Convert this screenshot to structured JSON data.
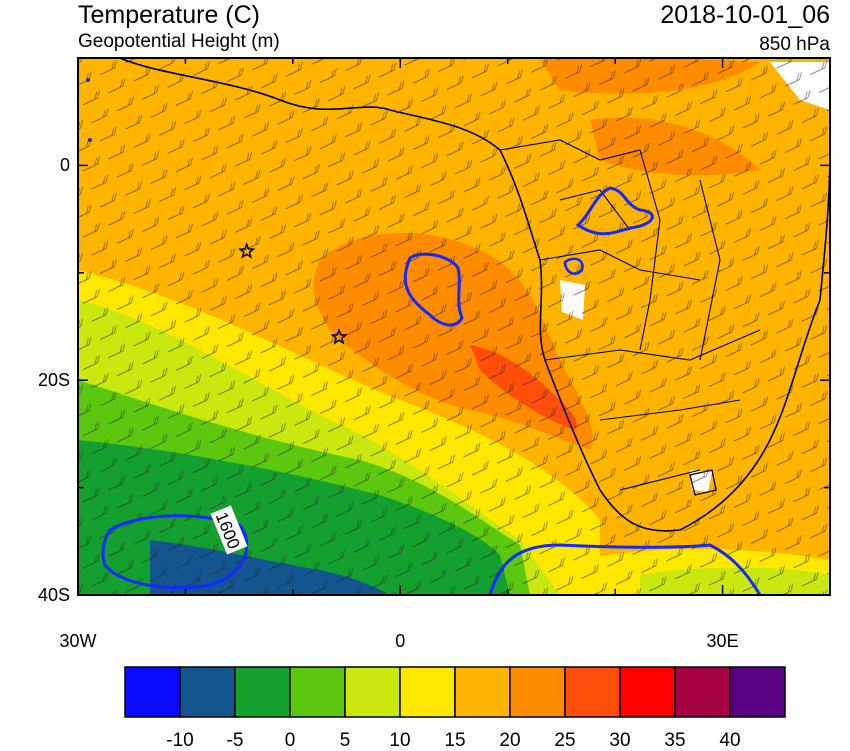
{
  "header": {
    "title_left": "Temperature (C)",
    "subtitle_left": "Geopotential Height (m)",
    "title_right": "2018-10-01_06",
    "subtitle_right": "850 hPa"
  },
  "map": {
    "y_ticks": [
      {
        "lat": 0,
        "label": "0"
      },
      {
        "lat": -20,
        "label": "20S"
      },
      {
        "lat": -40,
        "label": "40S"
      }
    ],
    "x_ticks": [
      {
        "lon": -30,
        "label": "30W"
      },
      {
        "lon": 0,
        "label": "0"
      },
      {
        "lon": 30,
        "label": "30E"
      }
    ],
    "contour_label": "1600",
    "stars": [
      {
        "lon": -14.3,
        "lat": -8.0
      },
      {
        "lon": -5.7,
        "lat": -16.0
      }
    ]
  },
  "colorbar": {
    "colors": [
      "#0a0aff",
      "#12558f",
      "#14a02e",
      "#5bc80f",
      "#c8e80f",
      "#ffe800",
      "#ffb400",
      "#ff8c00",
      "#ff4e0a",
      "#ff0000",
      "#a50040",
      "#5a0082"
    ],
    "labels": [
      "-10",
      "-5",
      "0",
      "5",
      "10",
      "15",
      "20",
      "25",
      "30",
      "35",
      "40"
    ]
  }
}
